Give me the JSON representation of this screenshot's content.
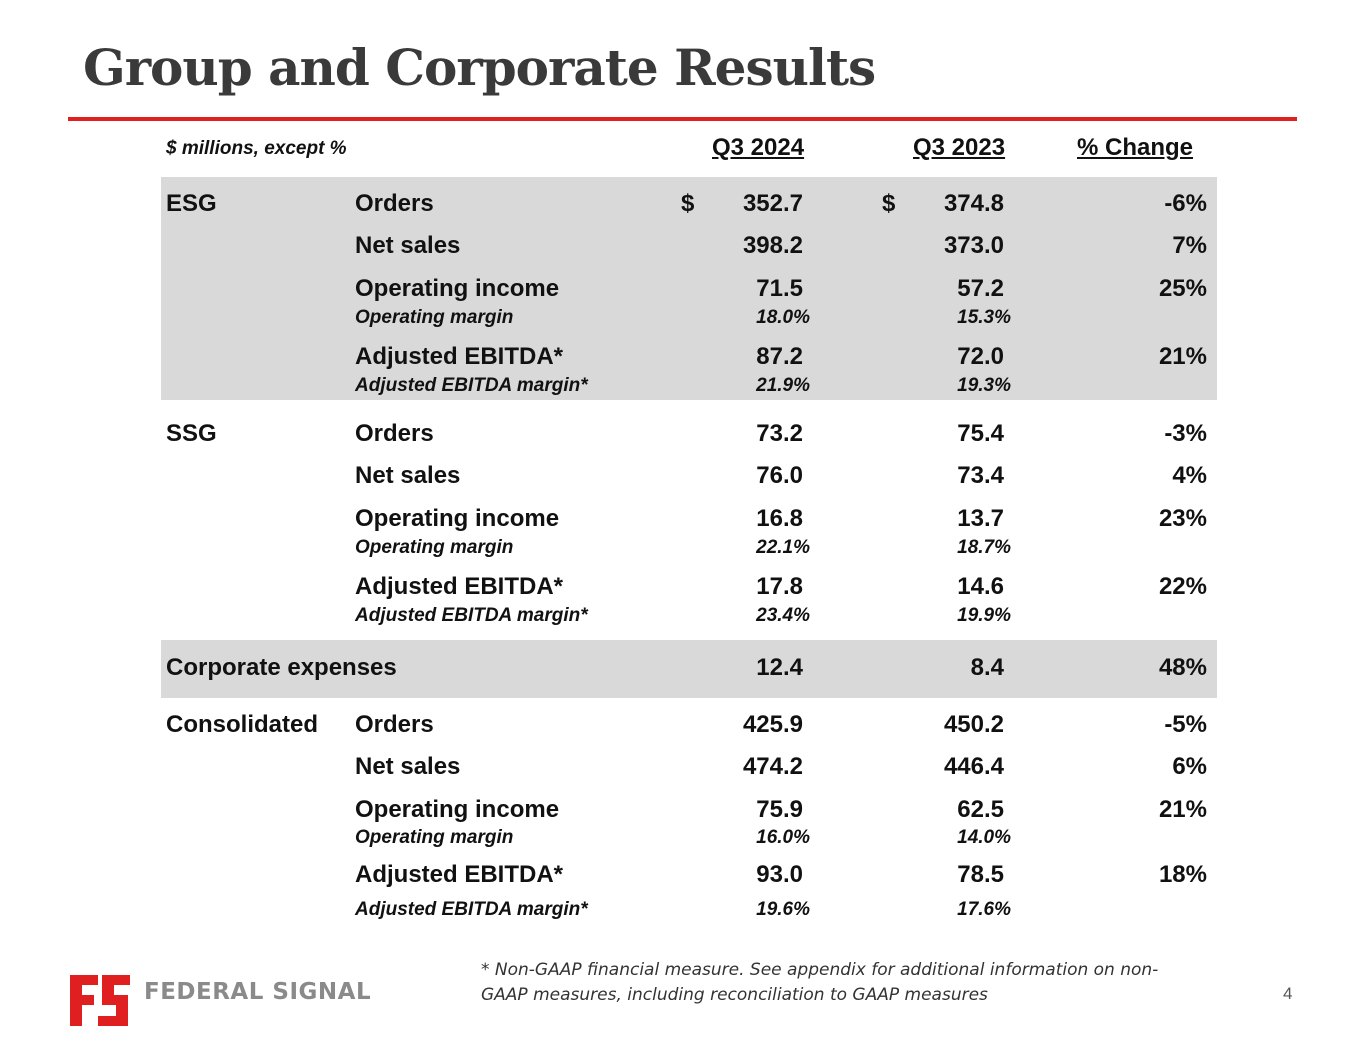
{
  "title": "Group and Corporate Results",
  "units_label": "$ millions, except %",
  "columns": [
    "Q3 2024",
    "Q3 2023",
    "% Change"
  ],
  "esg": {
    "label": "ESG",
    "orders": {
      "label": "Orders",
      "cur_sym": "$",
      "cur": "352.7",
      "prev_sym": "$",
      "prev": "374.8",
      "chg": "-6%"
    },
    "net_sales": {
      "label": "Net sales",
      "cur": "398.2",
      "prev": "373.0",
      "chg": "7%"
    },
    "op_income": {
      "label": "Operating income",
      "cur": "71.5",
      "prev": "57.2",
      "chg": "25%"
    },
    "op_margin": {
      "label": "Operating margin",
      "cur": "18.0%",
      "prev": "15.3%"
    },
    "adj_ebitda": {
      "label": "Adjusted EBITDA*",
      "cur": "87.2",
      "prev": "72.0",
      "chg": "21%"
    },
    "adj_margin": {
      "label": "Adjusted EBITDA margin*",
      "cur": "21.9%",
      "prev": "19.3%"
    }
  },
  "ssg": {
    "label": "SSG",
    "orders": {
      "label": "Orders",
      "cur": "73.2",
      "prev": "75.4",
      "chg": "-3%"
    },
    "net_sales": {
      "label": "Net sales",
      "cur": "76.0",
      "prev": "73.4",
      "chg": "4%"
    },
    "op_income": {
      "label": "Operating income",
      "cur": "16.8",
      "prev": "13.7",
      "chg": "23%"
    },
    "op_margin": {
      "label": "Operating margin",
      "cur": "22.1%",
      "prev": "18.7%"
    },
    "adj_ebitda": {
      "label": "Adjusted EBITDA*",
      "cur": "17.8",
      "prev": "14.6",
      "chg": "22%"
    },
    "adj_margin": {
      "label": "Adjusted EBITDA margin*",
      "cur": "23.4%",
      "prev": "19.9%"
    }
  },
  "corporate": {
    "label": "Corporate expenses",
    "cur": "12.4",
    "prev": "8.4",
    "chg": "48%"
  },
  "consolidated": {
    "label": "Consolidated",
    "orders": {
      "label": "Orders",
      "cur": "425.9",
      "prev": "450.2",
      "chg": "-5%"
    },
    "net_sales": {
      "label": "Net sales",
      "cur": "474.2",
      "prev": "446.4",
      "chg": "6%"
    },
    "op_income": {
      "label": "Operating income",
      "cur": "75.9",
      "prev": "62.5",
      "chg": "21%"
    },
    "op_margin": {
      "label": "Operating margin",
      "cur": "16.0%",
      "prev": "14.0%"
    },
    "adj_ebitda": {
      "label": "Adjusted EBITDA*",
      "cur": "93.0",
      "prev": "78.5",
      "chg": "18%"
    },
    "adj_margin": {
      "label": "Adjusted EBITDA margin*",
      "cur": "19.6%",
      "prev": "17.6%"
    }
  },
  "footnote": "* Non-GAAP financial measure. See appendix for additional information on non-GAAP measures, including reconciliation to GAAP measures",
  "page_number": "4",
  "logo": {
    "text": "FEDERAL SIGNAL",
    "color": "#e02020"
  }
}
